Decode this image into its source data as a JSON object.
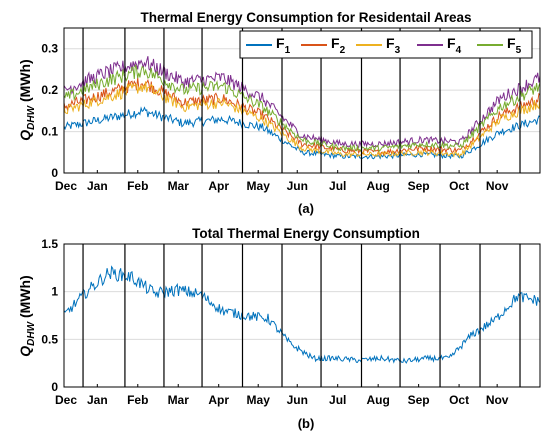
{
  "captions": [
    "(a)",
    "(b)"
  ],
  "colors": {
    "F1": "#0072bd",
    "F2": "#d95319",
    "F3": "#edb120",
    "F4": "#7e2f8e",
    "F5": "#77ac30",
    "total": "#0072bd",
    "grid": "#dcdcdc",
    "month_line": "#000000"
  },
  "chart_data": [
    {
      "type": "line",
      "title": "Thermal Energy Consumption for Residentail Areas",
      "ylabel": "Q_DHW (MWh)",
      "ylabel_main": "Q",
      "ylabel_sub": "DHW",
      "ylabel_unit": " (MWh)",
      "xlabel": "",
      "ylim": [
        0,
        0.35
      ],
      "yticks": [
        "0",
        "0.1",
        "0.2",
        "0.3"
      ],
      "ytick_values": [
        0,
        0.1,
        0.2,
        0.3
      ],
      "xticks": [
        "Dec",
        "Jan",
        "Feb",
        "Mar",
        "Apr",
        "May",
        "Jun",
        "Jul",
        "Aug",
        "Sep",
        "Oct",
        "Nov"
      ],
      "grid": true,
      "legend_position": "top-right",
      "month_boundaries": true,
      "series": [
        {
          "name": "F1",
          "legend_main": "F",
          "legend_sub": "1",
          "color": "#0072bd",
          "values": [
            0.11,
            0.13,
            0.15,
            0.12,
            0.13,
            0.11,
            0.05,
            0.04,
            0.04,
            0.045,
            0.04,
            0.1,
            0.13
          ]
        },
        {
          "name": "F2",
          "legend_main": "F",
          "legend_sub": "2",
          "color": "#d95319",
          "values": [
            0.16,
            0.19,
            0.22,
            0.17,
            0.18,
            0.14,
            0.07,
            0.055,
            0.05,
            0.06,
            0.055,
            0.14,
            0.18
          ]
        },
        {
          "name": "F3",
          "legend_main": "F",
          "legend_sub": "3",
          "color": "#edb120",
          "values": [
            0.15,
            0.18,
            0.21,
            0.16,
            0.17,
            0.13,
            0.06,
            0.045,
            0.045,
            0.05,
            0.045,
            0.13,
            0.17
          ]
        },
        {
          "name": "F4",
          "legend_main": "F",
          "legend_sub": "4",
          "color": "#7e2f8e",
          "values": [
            0.2,
            0.24,
            0.27,
            0.22,
            0.23,
            0.18,
            0.09,
            0.07,
            0.07,
            0.08,
            0.075,
            0.18,
            0.23
          ]
        },
        {
          "name": "F5",
          "legend_main": "F",
          "legend_sub": "5",
          "color": "#77ac30",
          "values": [
            0.18,
            0.22,
            0.25,
            0.2,
            0.21,
            0.16,
            0.08,
            0.06,
            0.06,
            0.07,
            0.065,
            0.16,
            0.21
          ]
        }
      ]
    },
    {
      "type": "line",
      "title": "Total Thermal Energy Consumption",
      "ylabel": "Q_DHW (MWh)",
      "ylabel_main": "Q",
      "ylabel_sub": "DHW",
      "ylabel_unit": " (MWh)",
      "xlabel": "",
      "ylim": [
        0,
        1.5
      ],
      "yticks": [
        "0",
        "0.5",
        "1",
        "1.5"
      ],
      "ytick_values": [
        0,
        0.5,
        1,
        1.5
      ],
      "xticks": [
        "Dec",
        "Jan",
        "Feb",
        "Mar",
        "Apr",
        "May",
        "Jun",
        "Jul",
        "Aug",
        "Sep",
        "Oct",
        "Nov"
      ],
      "grid": true,
      "month_boundaries": true,
      "series": [
        {
          "name": "Total",
          "color": "#0072bd",
          "values": [
            0.75,
            1.0,
            1.2,
            1.15,
            0.98,
            1.02,
            0.97,
            0.8,
            0.75,
            0.72,
            0.45,
            0.3,
            0.3,
            0.28,
            0.3,
            0.27,
            0.3,
            0.3,
            0.55,
            0.7,
            0.95,
            0.9
          ]
        }
      ]
    }
  ]
}
